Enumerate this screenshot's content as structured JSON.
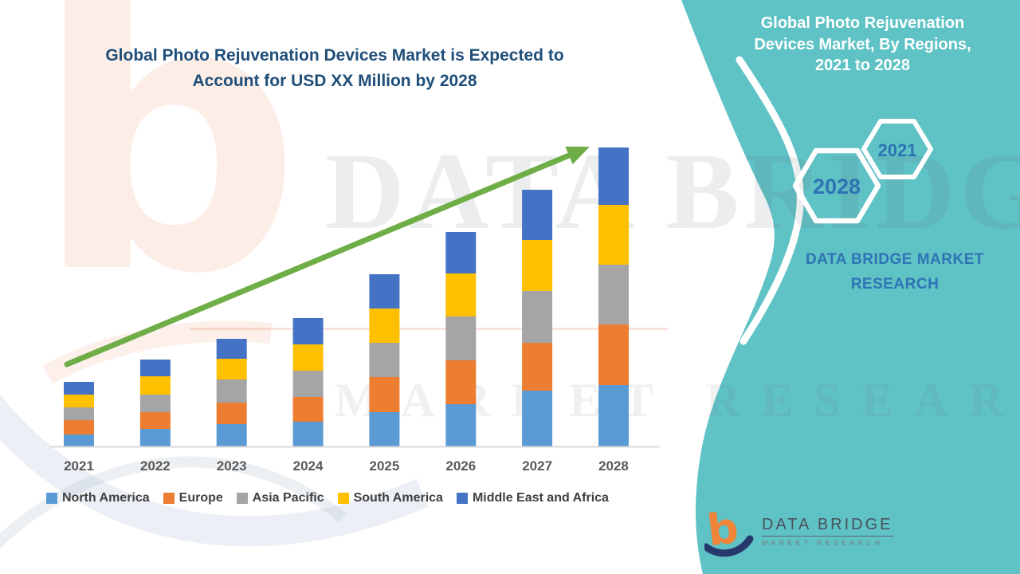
{
  "left_section": {
    "title": "Global Photo Rejuvenation Devices Market is Expected to\nAccount for USD XX Million by 2028"
  },
  "right_panel": {
    "title": "Global Photo Rejuvenation\nDevices Market, By Regions,\n2021 to 2028",
    "hexagons": [
      {
        "label": "2028"
      },
      {
        "label": "2021"
      }
    ],
    "brand_text": "DATA BRIDGE MARKET\nRESEARCH",
    "background_color": "#5FC2C5",
    "text_color": "#2E74B5"
  },
  "footer_logo": {
    "name": "DATA BRIDGE",
    "tagline": "MARKET RESEARCH"
  },
  "watermarks": {
    "big_text": "DATA BRIDGE",
    "sub_text": "MARKET RESEARCH",
    "logo_glyph": "b"
  },
  "chart_data": {
    "type": "bar",
    "stacked": true,
    "title": "Global Photo Rejuvenation Devices Market is Expected to Account for USD XX Million by 2028",
    "xlabel": "",
    "ylabel": "",
    "value_axis_visible": false,
    "gridlines": false,
    "legend_position": "bottom",
    "units_note": "relative heights; chart shows USD XX Million (values unlabeled)",
    "categories": [
      "2021",
      "2022",
      "2023",
      "2024",
      "2025",
      "2026",
      "2027",
      "2028"
    ],
    "series": [
      {
        "name": "North America",
        "color": "#5B9BD5",
        "values": [
          15,
          22,
          28,
          31,
          43,
          53,
          70,
          77
        ]
      },
      {
        "name": "Europe",
        "color": "#ED7D31",
        "values": [
          18,
          21,
          27,
          31,
          44,
          55,
          60,
          76
        ]
      },
      {
        "name": "Asia Pacific",
        "color": "#A5A5A5",
        "values": [
          16,
          22,
          29,
          33,
          43,
          55,
          65,
          75
        ]
      },
      {
        "name": "South America",
        "color": "#FFC000",
        "values": [
          16,
          23,
          26,
          33,
          43,
          54,
          64,
          75
        ]
      },
      {
        "name": "Middle East and Africa",
        "color": "#4472C4",
        "values": [
          16,
          21,
          25,
          33,
          43,
          52,
          63,
          72
        ]
      }
    ],
    "totals": [
      81,
      109,
      135,
      161,
      216,
      269,
      322,
      375
    ],
    "trend_arrow": {
      "present": true,
      "color": "#6FAD47",
      "direction": "up",
      "from_category": "2021",
      "to_category": "2028"
    }
  },
  "colors": {
    "title_text": "#1F4E79",
    "axis_line": "#D9D9D9",
    "year_labels": "#595959",
    "legend_text": "#404040"
  }
}
